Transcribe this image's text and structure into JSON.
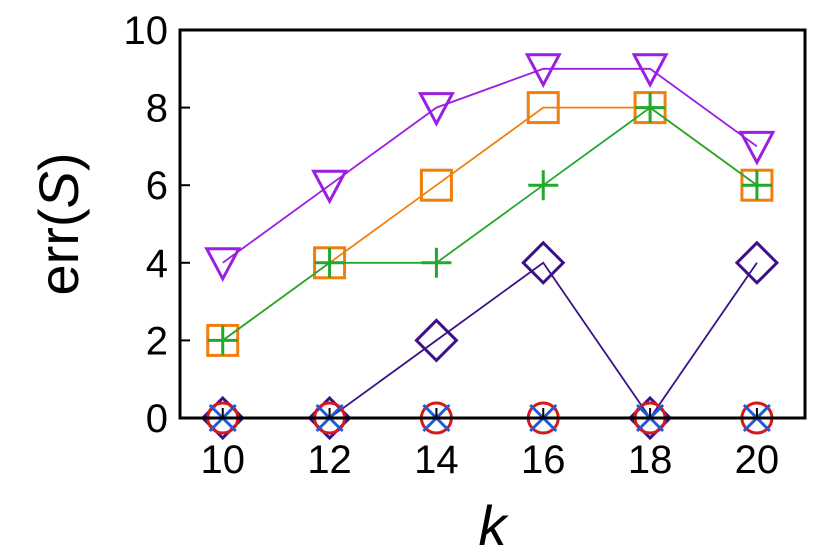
{
  "chart_data": {
    "type": "line",
    "xlabel": "k",
    "ylabel": "err(S)",
    "ylabel_parts": {
      "prefix": "err(",
      "var": "S",
      "suffix": ")"
    },
    "x": [
      10,
      12,
      14,
      16,
      18,
      20
    ],
    "xlim": [
      9.2,
      20.9
    ],
    "ylim": [
      0,
      10
    ],
    "x_ticks": [
      "10",
      "12",
      "14",
      "16",
      "18",
      "20"
    ],
    "y_ticks": [
      "0",
      "2",
      "4",
      "6",
      "8",
      "10"
    ],
    "grid": false,
    "legend": "none",
    "series": [
      {
        "values": [
          4,
          6,
          8,
          9,
          9,
          7
        ],
        "color": "#9A1FE0",
        "marker": "triangle-down"
      },
      {
        "values": [
          2,
          4,
          6,
          8,
          8,
          6
        ],
        "color": "#F07F0E",
        "marker": "square"
      },
      {
        "values": [
          2,
          4,
          4,
          6,
          8,
          6
        ],
        "color": "#22A82C",
        "marker": "plus"
      },
      {
        "values": [
          0,
          0,
          2,
          4,
          0,
          4
        ],
        "color": "#3C1188",
        "marker": "diamond"
      },
      {
        "values": [
          0,
          0,
          0,
          0,
          0,
          0
        ],
        "color": "#D7191C",
        "marker": "circle"
      },
      {
        "values": [
          0,
          0,
          0,
          0,
          0,
          0
        ],
        "color": "#1E5BD6",
        "marker": "x"
      }
    ]
  }
}
